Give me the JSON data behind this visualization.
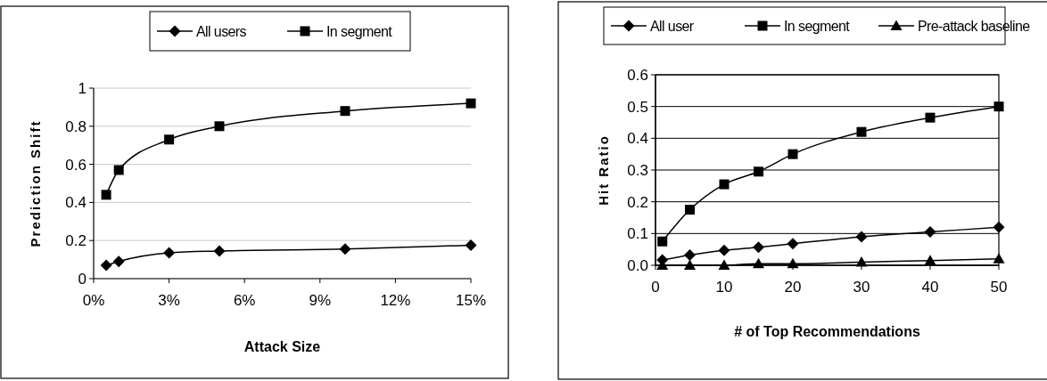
{
  "chart_data": [
    {
      "type": "line",
      "xlabel": "Attack Size",
      "ylabel": "Prediction Shift",
      "xlim": [
        0,
        15
      ],
      "xticks": [
        {
          "value": 0,
          "label": "0%"
        },
        {
          "value": 3,
          "label": "3%"
        },
        {
          "value": 6,
          "label": "6%"
        },
        {
          "value": 9,
          "label": "9%"
        },
        {
          "value": 12,
          "label": "12%"
        },
        {
          "value": 15,
          "label": "15%"
        }
      ],
      "ylim": [
        0,
        1
      ],
      "yticks": [
        0,
        0.2,
        0.4,
        0.6,
        0.8,
        1
      ],
      "grid": "y",
      "legend": "top",
      "line_style": "solid",
      "x": [
        0.5,
        1,
        3,
        5,
        10,
        15
      ],
      "series": [
        {
          "name": "All users",
          "color": "#000000",
          "marker": "diamond",
          "values": [
            0.07,
            0.09,
            0.135,
            0.145,
            0.155,
            0.175
          ]
        },
        {
          "name": "In segment",
          "color": "#000000",
          "marker": "square",
          "values": [
            0.44,
            0.57,
            0.73,
            0.8,
            0.88,
            0.92
          ]
        }
      ]
    },
    {
      "type": "line",
      "xlabel": "# of Top Recommendations",
      "ylabel": "Hit Ratio",
      "xlim": [
        0,
        50
      ],
      "xticks": [
        0,
        10,
        20,
        30,
        40,
        50
      ],
      "ylim": [
        0,
        0.6
      ],
      "yticks": [
        {
          "value": 0,
          "label": "0.0"
        },
        0.1,
        0.2,
        0.3,
        0.4,
        0.5,
        0.6
      ],
      "grid": "y",
      "legend": "top",
      "line_style": "solid",
      "x": [
        1,
        5,
        10,
        15,
        20,
        30,
        40,
        50
      ],
      "series": [
        {
          "name": "All user",
          "color": "#000000",
          "marker": "diamond",
          "values": [
            0.017,
            0.032,
            0.047,
            0.057,
            0.068,
            0.09,
            0.105,
            0.12
          ]
        },
        {
          "name": "In segment",
          "color": "#000000",
          "marker": "square",
          "values": [
            0.075,
            0.175,
            0.255,
            0.295,
            0.35,
            0.42,
            0.465,
            0.5
          ]
        },
        {
          "name": "Pre-attack baseline",
          "color": "#000000",
          "marker": "triangle",
          "values": [
            0,
            0,
            0,
            0.005,
            0.005,
            0.01,
            0.015,
            0.02
          ]
        }
      ]
    }
  ]
}
